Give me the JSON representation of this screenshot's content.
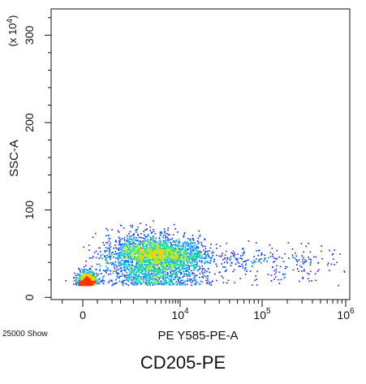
{
  "chart_data": {
    "type": "scatter",
    "subtype": "flow-cytometry-density-dot-plot",
    "xlabel": "PE Y585-PE-A",
    "ylabel": "SSC-A",
    "y_multiplier_label": "(x 10",
    "y_multiplier_exponent": "4",
    "y_multiplier_suffix": ")",
    "x_scale": "biexponential",
    "y_scale": "linear",
    "xlim": [
      -1500,
      1000000
    ],
    "ylim": [
      -25000,
      3300000
    ],
    "y_ticks": [
      {
        "value": 0,
        "label": "0"
      },
      {
        "value": 1000000,
        "label": "100"
      },
      {
        "value": 2000000,
        "label": "200"
      },
      {
        "value": 3000000,
        "label": "300"
      }
    ],
    "x_ticks": [
      {
        "value": 0,
        "label": "0",
        "exp": ""
      },
      {
        "value": 10000,
        "label": "10",
        "exp": "4"
      },
      {
        "value": 100000,
        "label": "10",
        "exp": "5"
      },
      {
        "value": 1000000,
        "label": "10",
        "exp": "6"
      }
    ],
    "events_shown": 25000,
    "population_clusters": [
      {
        "name": "main-low",
        "x_center": 20,
        "y_center": 150000,
        "density": "peak"
      },
      {
        "name": "main-spread",
        "x_center": 2500,
        "y_center": 500000,
        "density": "high"
      },
      {
        "name": "tail-high-PE",
        "x_center": 60000,
        "y_center": 450000,
        "density": "sparse"
      }
    ],
    "density_colors": [
      "#1a1aff",
      "#0055ff",
      "#00aaff",
      "#22dd99",
      "#aaee22",
      "#ffcc00",
      "#ff3300"
    ],
    "grid": false,
    "legend": "none"
  },
  "footer": {
    "events_label": "25000 Show",
    "caption": "CD205-PE"
  }
}
